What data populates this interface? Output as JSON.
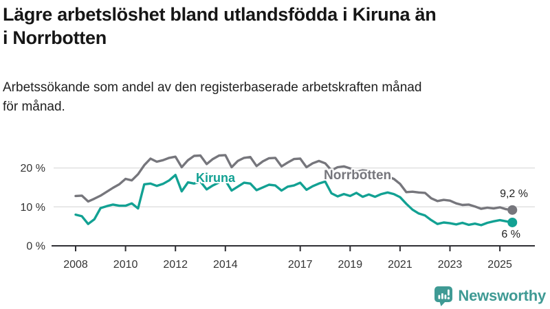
{
  "header": {
    "title_lines": [
      "Lägre arbetslöshet bland utlandsfödda i Kiruna än",
      "i Norrbotten"
    ],
    "subtitle_lines": [
      "Arbetssökande som andel av den registerbaserade arbetskraften månad",
      "för månad."
    ]
  },
  "chart_data": {
    "type": "line",
    "title": "Lägre arbetslöshet bland utlandsfödda i Kiruna än i Norrbotten",
    "subtitle": "Arbetssökande som andel av den registerbaserade arbetskraften månad för månad.",
    "unit": "%",
    "x_start": 2008,
    "x_step": 0.25,
    "x_end": 2025.5,
    "x_ticks": [
      2008,
      2010,
      2012,
      2014,
      2017,
      2019,
      2021,
      2023,
      2025
    ],
    "y_ticks": [
      {
        "value": 0,
        "label": "0 %"
      },
      {
        "value": 10,
        "label": "10 %"
      },
      {
        "value": 20,
        "label": "20 %"
      }
    ],
    "ylim": [
      0,
      25
    ],
    "grid": "horizontal-light",
    "legend": "inline-labels",
    "series": [
      {
        "name": "Norrbotten",
        "color": "#76767c",
        "end_value": 9.2,
        "end_label": "9,2 %",
        "values": [
          12.8,
          12.9,
          11.4,
          12.1,
          12.9,
          13.9,
          14.9,
          15.8,
          17.2,
          16.8,
          18.4,
          20.7,
          22.4,
          21.6,
          22.0,
          22.6,
          22.9,
          20.2,
          22.0,
          23.1,
          23.2,
          21.0,
          22.3,
          23.2,
          23.3,
          20.2,
          21.8,
          22.6,
          22.8,
          20.5,
          21.7,
          22.5,
          22.6,
          20.4,
          21.4,
          22.3,
          22.4,
          20.2,
          21.2,
          21.8,
          21.2,
          19.4,
          20.2,
          20.4,
          19.9,
          19.0,
          19.4,
          19.2,
          18.7,
          18.2,
          17.8,
          17.2,
          15.9,
          13.8,
          13.9,
          13.7,
          13.6,
          12.2,
          11.5,
          11.8,
          11.6,
          10.9,
          10.5,
          10.6,
          10.1,
          9.5,
          9.8,
          9.6,
          9.9,
          9.4,
          9.2
        ]
      },
      {
        "name": "Kiruna",
        "color": "#12a193",
        "end_value": 6.0,
        "end_label": "6 %",
        "values": [
          8.0,
          7.6,
          5.6,
          6.8,
          9.7,
          10.2,
          10.6,
          10.3,
          10.3,
          10.9,
          9.6,
          15.8,
          16.0,
          15.4,
          15.9,
          16.8,
          18.2,
          14.0,
          16.3,
          16.0,
          16.5,
          14.5,
          15.5,
          16.3,
          16.8,
          14.2,
          15.2,
          16.2,
          16.0,
          14.3,
          15.0,
          15.7,
          15.5,
          14.2,
          15.2,
          15.5,
          16.2,
          14.4,
          15.3,
          16.0,
          16.5,
          13.5,
          12.7,
          13.3,
          12.8,
          13.6,
          12.6,
          13.2,
          12.6,
          13.3,
          13.7,
          13.3,
          12.5,
          10.8,
          9.3,
          8.3,
          7.8,
          6.6,
          5.6,
          6.0,
          5.8,
          5.5,
          5.9,
          5.4,
          5.7,
          5.3,
          5.9,
          6.3,
          6.6,
          6.3,
          6.0
        ]
      }
    ],
    "colors": {
      "grid": "#e0e0e0",
      "axis": "#2e2e33",
      "tick_text": "#333333"
    }
  },
  "footer": {
    "brand": "Newsworthy",
    "brand_color": "#3f9a94"
  }
}
